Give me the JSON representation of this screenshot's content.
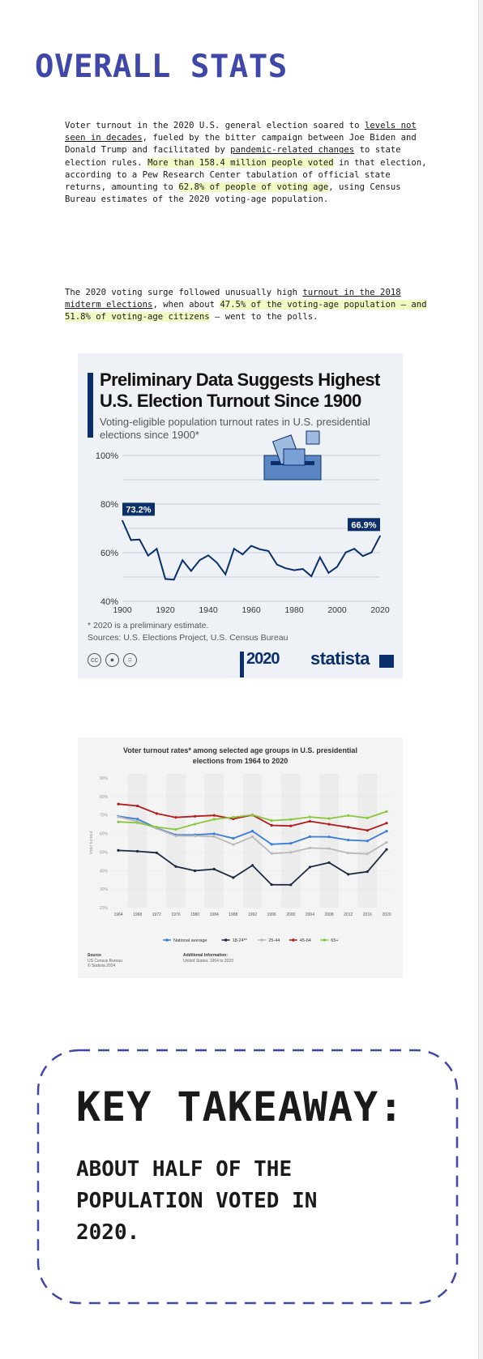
{
  "page": {
    "title": "OVERALL STATS",
    "para1": {
      "t1": "Voter turnout in the 2020 U.S. general election soared to ",
      "link1": "levels not seen in decades",
      "t2": ", fueled by the bitter campaign between Joe Biden and Donald Trump and facilitated by ",
      "link2": "pandemic-related changes",
      "t3": " to state election rules. ",
      "hl1": "More than 158.4 million people voted",
      "t4": " in that election, according to a Pew Research Center tabulation of official state returns, amounting to ",
      "hl2": "62.8% of people of voting age",
      "t5": ", using Census Bureau estimates of the 2020 voting-age population."
    },
    "para2": {
      "t1": "The 2020 voting surge followed unusually high ",
      "link1": "turnout in the 2018 midterm elections",
      "t2": ", when about ",
      "hl1": "47.5% of the voting-age population – and 51.8% of voting-age citizens",
      "t3": " – went to the polls."
    },
    "takeaway": {
      "heading": "KEY TAKEAWAY:",
      "body": "ABOUT HALF OF THE POPULATION VOTED IN 2020."
    }
  },
  "chart1_text": {
    "title": "Preliminary Data Suggests Highest U.S. Election Turnout Since 1900",
    "subtitle": "Voting-eligible population turnout rates in U.S. presidential elections since 1900*",
    "note": "* 2020 is a preliminary estimate.",
    "source": "Sources: U.S. Elections Project, U.S. Census Bureau",
    "brand": "statista",
    "logo2020": "2020"
  },
  "chart2_text": {
    "title": "Voter turnout rates* among selected age groups in U.S. presidential elections from 1964 to 2020",
    "ylabel": "Voter turnout",
    "source_head": "Source",
    "source_body": "US Census Bureau\n© Statista 2024",
    "info_head": "Additional Information:",
    "info_body": "United States; 1964 to 2020"
  },
  "colors": {
    "accent": "#3f47a8",
    "highlight": "#f3f9c3",
    "statista_navy": "#0a2f6b",
    "dash_border": "#3f47a8"
  },
  "chart_data": [
    {
      "type": "line",
      "title": "Preliminary Data Suggests Highest U.S. Election Turnout Since 1900",
      "subtitle": "Voting-eligible population turnout rates in U.S. presidential elections since 1900*",
      "x": [
        1900,
        1904,
        1908,
        1912,
        1916,
        1920,
        1924,
        1928,
        1932,
        1936,
        1940,
        1944,
        1948,
        1952,
        1956,
        1960,
        1964,
        1968,
        1972,
        1976,
        1980,
        1984,
        1988,
        1992,
        1996,
        2000,
        2004,
        2008,
        2012,
        2016,
        2020
      ],
      "series": [
        {
          "values": [
            73.2,
            65.2,
            65.4,
            58.8,
            61.6,
            49.2,
            48.9,
            56.9,
            52.5,
            56.9,
            58.9,
            55.9,
            51.1,
            61.6,
            59.3,
            62.8,
            61.4,
            60.7,
            55.1,
            53.6,
            52.8,
            53.3,
            50.3,
            58.1,
            51.7,
            54.2,
            60.1,
            61.6,
            58.6,
            60.1,
            66.9
          ]
        }
      ],
      "data_labels": [
        "73.2%",
        "66.9%"
      ],
      "yticks": [
        "100%",
        "80%",
        "60%",
        "40%"
      ],
      "xticks": [
        "1900",
        "1920",
        "1940",
        "1960",
        "1980",
        "2000",
        "2020"
      ],
      "xlim": [
        1900,
        2020
      ],
      "ylim": [
        40,
        100
      ],
      "grid": true
    },
    {
      "type": "line",
      "title": "Voter turnout rates* among selected age groups in U.S. presidential elections from 1964 to 2020",
      "ylabel": "Voter turnout",
      "categories": [
        "1964",
        "1968",
        "1972",
        "1976",
        "1980",
        "1984",
        "1988",
        "1992",
        "1996",
        "2000",
        "2004",
        "2008",
        "2012",
        "2016",
        "2020"
      ],
      "yticks": [
        "90%",
        "80%",
        "70%",
        "60%",
        "50%",
        "40%",
        "30%",
        "20%"
      ],
      "ylim": [
        20,
        90
      ],
      "legend": "bottom",
      "grid": true,
      "series": [
        {
          "name": "National average",
          "color": "#3b7dd8",
          "values": [
            69.3,
            67.8,
            63.0,
            59.2,
            59.3,
            59.9,
            57.4,
            61.3,
            54.2,
            54.7,
            58.3,
            58.2,
            56.5,
            56.0,
            61.3
          ]
        },
        {
          "name": "18-24**",
          "color": "#1b2a41",
          "values": [
            50.9,
            50.4,
            49.6,
            42.2,
            39.9,
            40.8,
            36.2,
            42.8,
            32.4,
            32.3,
            41.9,
            44.3,
            38.0,
            39.4,
            51.4
          ]
        },
        {
          "name": "25-44",
          "color": "#b9b9b9",
          "values": [
            69.0,
            66.6,
            62.7,
            58.7,
            58.7,
            58.4,
            54.0,
            58.3,
            49.2,
            49.8,
            52.2,
            51.9,
            49.5,
            49.0,
            55.2
          ]
        },
        {
          "name": "45-64",
          "color": "#b31b1b",
          "values": [
            75.9,
            74.9,
            70.8,
            68.7,
            69.3,
            69.8,
            67.9,
            70.0,
            64.4,
            64.1,
            66.6,
            65.0,
            63.4,
            61.7,
            65.6
          ]
        },
        {
          "name": "65+",
          "color": "#8cc63f",
          "values": [
            66.3,
            65.8,
            63.5,
            62.2,
            65.1,
            67.7,
            68.8,
            70.1,
            67.0,
            67.6,
            68.9,
            68.1,
            69.7,
            68.4,
            71.9
          ]
        }
      ]
    }
  ]
}
